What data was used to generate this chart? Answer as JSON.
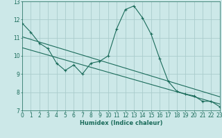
{
  "title": "",
  "xlabel": "Humidex (Indice chaleur)",
  "bg_color": "#cce8e8",
  "grid_color": "#aacccc",
  "line_color": "#1a6b5a",
  "xlim": [
    0,
    23
  ],
  "ylim": [
    7,
    13
  ],
  "yticks": [
    7,
    8,
    9,
    10,
    11,
    12,
    13
  ],
  "xticks": [
    0,
    1,
    2,
    3,
    4,
    5,
    6,
    7,
    8,
    9,
    10,
    11,
    12,
    13,
    14,
    15,
    16,
    17,
    18,
    19,
    20,
    21,
    22,
    23
  ],
  "curve1_x": [
    0,
    1,
    2,
    3,
    4,
    5,
    6,
    7,
    8,
    9,
    10,
    11,
    12,
    13,
    14,
    15,
    16,
    17,
    18,
    19,
    20,
    21,
    22,
    23
  ],
  "curve1_y": [
    11.8,
    11.3,
    10.7,
    10.4,
    9.6,
    9.2,
    9.5,
    9.0,
    9.6,
    9.7,
    10.0,
    11.5,
    12.55,
    12.75,
    12.1,
    11.2,
    9.85,
    8.6,
    8.05,
    7.9,
    7.8,
    7.5,
    7.5,
    7.2
  ],
  "line2_x": [
    0,
    23
  ],
  "line2_y": [
    11.05,
    7.75
  ],
  "line3_x": [
    0,
    23
  ],
  "line3_y": [
    10.45,
    7.35
  ]
}
